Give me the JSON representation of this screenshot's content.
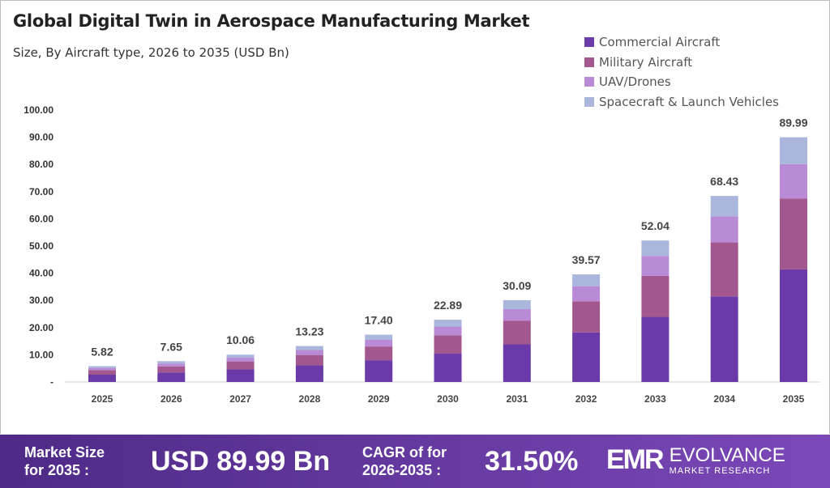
{
  "chart_data": {
    "type": "bar",
    "stacked": true,
    "title": "Global Digital Twin in Aerospace Manufacturing Market",
    "subtitle": "Size, By Aircraft  type, 2026 to 2035 (USD Bn)",
    "categories": [
      "2025",
      "2026",
      "2027",
      "2028",
      "2029",
      "2030",
      "2031",
      "2032",
      "2033",
      "2034",
      "2035"
    ],
    "totals": [
      "5.82",
      "7.65",
      "10.06",
      "13.23",
      "17.40",
      "22.89",
      "30.09",
      "39.57",
      "52.04",
      "68.43",
      "89.99"
    ],
    "series": [
      {
        "name": "Commercial Aircraft",
        "color": "#6a3aa8",
        "values": [
          2.68,
          3.52,
          4.63,
          6.09,
          8.0,
          10.53,
          13.84,
          18.2,
          23.94,
          31.48,
          41.4
        ]
      },
      {
        "name": "Military Aircraft",
        "color": "#a2588f",
        "values": [
          1.69,
          2.22,
          2.92,
          3.84,
          5.05,
          6.64,
          8.73,
          11.48,
          15.09,
          19.84,
          26.1
        ]
      },
      {
        "name": "UAV/Drones",
        "color": "#b98ad6",
        "values": [
          0.81,
          1.07,
          1.41,
          1.85,
          2.44,
          3.2,
          4.21,
          5.54,
          7.29,
          9.58,
          12.6
        ]
      },
      {
        "name": "Spacecraft & Launch Vehicles",
        "color": "#aab6dc",
        "values": [
          0.64,
          0.84,
          1.1,
          1.45,
          1.91,
          2.52,
          3.31,
          4.35,
          5.72,
          7.53,
          9.89
        ]
      }
    ],
    "yticks": [
      "-",
      "10.00",
      "20.00",
      "30.00",
      "40.00",
      "50.00",
      "60.00",
      "70.00",
      "80.00",
      "90.00",
      "100.00"
    ],
    "ylim": [
      0,
      100
    ],
    "grid": false,
    "legend": "top-right"
  },
  "footer": {
    "market_label_1": "Market Size",
    "market_label_2": "for 2035 :",
    "market_value": "USD 89.99 Bn",
    "cagr_label_1": "CAGR of for",
    "cagr_label_2": "2026-2035 :",
    "cagr_value": "31.50%",
    "logo_mark": "EMR",
    "logo_name": "EVOLVANCE",
    "logo_sub": "MARKET RESEARCH"
  }
}
